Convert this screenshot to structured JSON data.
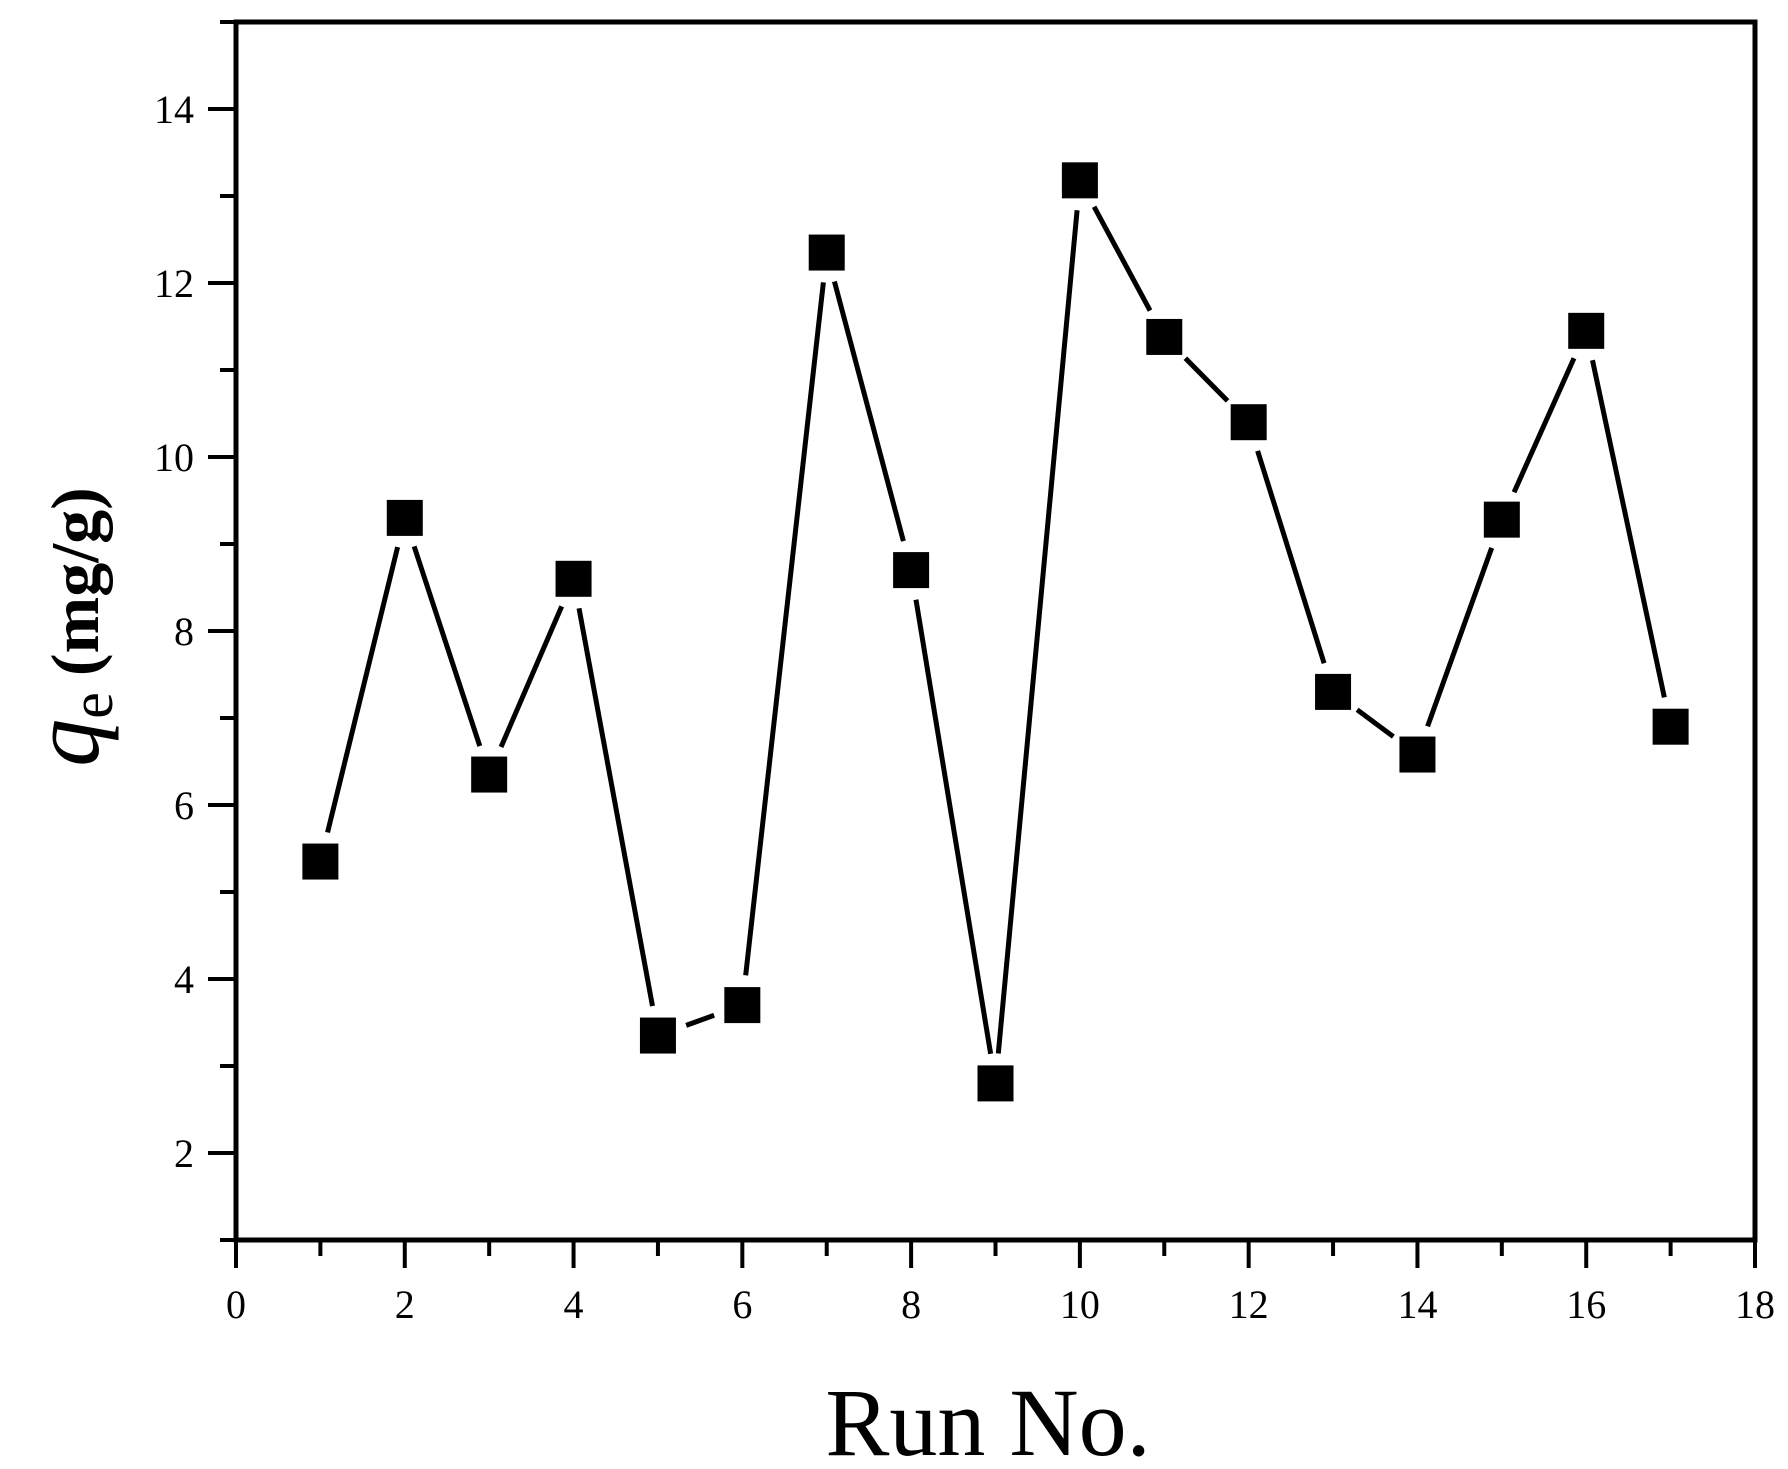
{
  "chart_data": {
    "type": "line",
    "title": "",
    "xlabel": "Run No.",
    "ylabel": {
      "symbol": "q",
      "subscript": "e",
      "unit": "(mg/g)"
    },
    "xlim": [
      0,
      18
    ],
    "ylim": [
      1,
      15
    ],
    "xticks": [
      0,
      2,
      4,
      6,
      8,
      10,
      12,
      14,
      16,
      18
    ],
    "yticks": [
      2,
      4,
      6,
      8,
      10,
      12,
      14
    ],
    "grid": false,
    "legend": "none",
    "marker": "square",
    "color": "#000000",
    "series": [
      {
        "x": [
          1,
          2,
          3,
          4,
          5,
          6,
          7,
          8,
          9,
          10,
          11,
          12,
          13,
          14,
          15,
          16,
          17
        ],
        "y": [
          5.35,
          9.3,
          6.35,
          8.6,
          3.35,
          3.7,
          12.35,
          8.7,
          2.8,
          13.18,
          11.38,
          10.4,
          7.3,
          6.58,
          9.28,
          11.45,
          6.9
        ]
      }
    ]
  }
}
